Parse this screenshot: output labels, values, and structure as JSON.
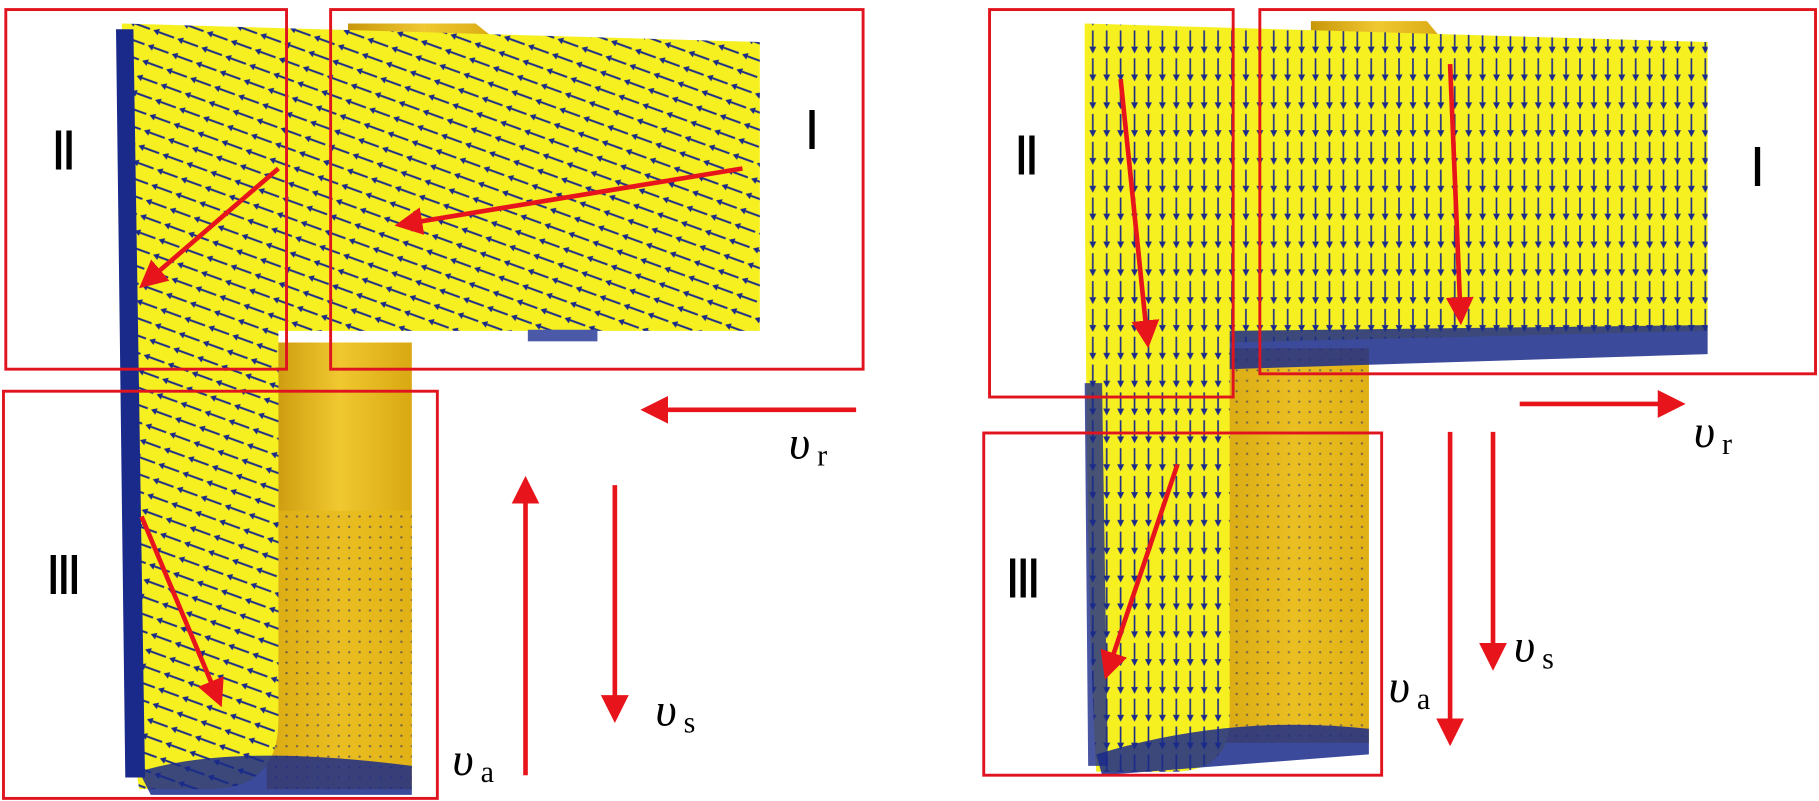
{
  "panels": [
    {
      "regions": [
        "Ⅰ",
        "Ⅱ",
        "Ⅲ"
      ],
      "velocities": [
        {
          "symbol": "υ",
          "subscript": "r"
        },
        {
          "symbol": "υ",
          "subscript": "s"
        },
        {
          "symbol": "υ",
          "subscript": "a"
        }
      ]
    },
    {
      "regions": [
        "Ⅰ",
        "Ⅱ",
        "Ⅲ"
      ],
      "velocities": [
        {
          "symbol": "υ",
          "subscript": "r"
        },
        {
          "symbol": "υ",
          "subscript": "s"
        },
        {
          "symbol": "υ",
          "subscript": "a"
        }
      ]
    }
  ]
}
